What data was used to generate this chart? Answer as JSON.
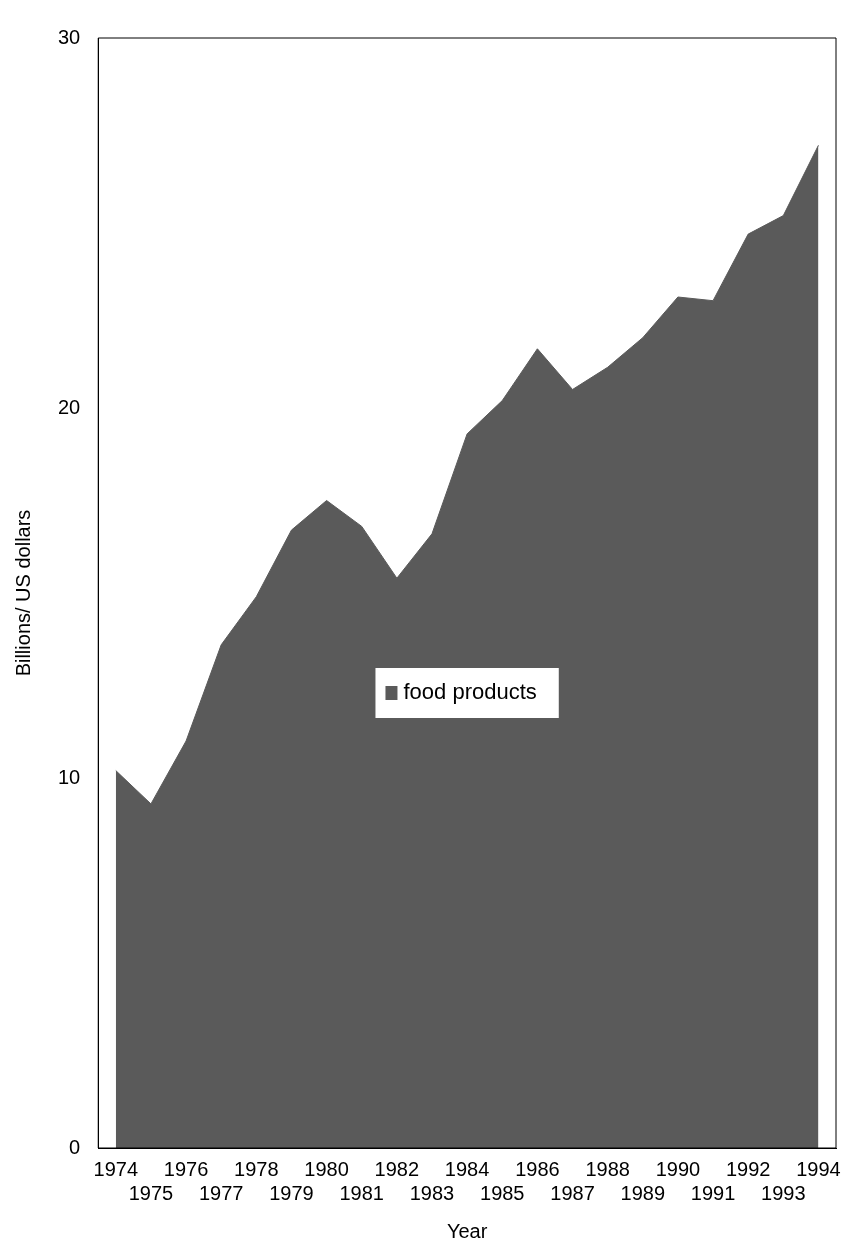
{
  "chart_data": {
    "type": "area",
    "xlabel": "Year",
    "ylabel": "Billions/ US dollars",
    "categories": [
      "1974",
      "1975",
      "1976",
      "1977",
      "1978",
      "1979",
      "1980",
      "1981",
      "1982",
      "1983",
      "1984",
      "1985",
      "1986",
      "1987",
      "1988",
      "1989",
      "1990",
      "1991",
      "1992",
      "1993",
      "1994"
    ],
    "series": [
      {
        "name": "food products",
        "color": "#5a5a5a",
        "values": [
          10.2,
          9.3,
          11.0,
          13.6,
          14.9,
          16.7,
          17.5,
          16.8,
          15.4,
          16.6,
          19.3,
          20.2,
          21.6,
          20.5,
          21.1,
          21.9,
          23.0,
          22.9,
          24.7,
          25.2,
          27.1
        ]
      }
    ],
    "ylim": [
      0,
      30
    ],
    "yticks": [
      0,
      10,
      20,
      30
    ],
    "grid": false,
    "legend": "center"
  }
}
